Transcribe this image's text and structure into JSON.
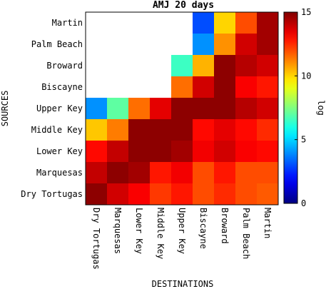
{
  "chart_data": {
    "type": "heatmap",
    "title": "AMJ 20 days",
    "xlabel": "DESTINATIONS",
    "ylabel": "SOURCES",
    "colorbar_label": "log",
    "colorbar_ticks": [
      "0",
      "5",
      "10",
      "15"
    ],
    "clim": [
      0,
      15
    ],
    "colormap": "jet",
    "missing_color": "#ffffff",
    "x_categories": [
      "Dry Tortugas",
      "Marquesas",
      "Lower Key",
      "Middle Key",
      "Upper Key",
      "Biscayne",
      "Broward",
      "Palm Beach",
      "Martin"
    ],
    "y_categories": [
      "Martin",
      "Palm Beach",
      "Broward",
      "Biscayne",
      "Upper Key",
      "Middle Key",
      "Lower Key",
      "Marquesas",
      "Dry Tortugas"
    ],
    "values": [
      [
        null,
        null,
        null,
        null,
        null,
        3.0,
        10.0,
        12.0,
        14.5
      ],
      [
        null,
        null,
        null,
        null,
        null,
        4.0,
        11.0,
        13.8,
        14.5
      ],
      [
        null,
        null,
        null,
        null,
        6.5,
        10.5,
        14.8,
        14.2,
        13.8
      ],
      [
        null,
        null,
        null,
        null,
        11.5,
        13.8,
        14.8,
        13.2,
        12.8
      ],
      [
        4.0,
        7.0,
        11.5,
        13.5,
        14.8,
        14.8,
        14.8,
        14.2,
        13.8
      ],
      [
        10.2,
        11.3,
        14.8,
        14.8,
        14.8,
        13.0,
        13.5,
        13.0,
        12.5
      ],
      [
        13.0,
        14.0,
        14.8,
        14.8,
        14.5,
        13.3,
        13.8,
        13.2,
        13.0
      ],
      [
        14.0,
        14.8,
        14.5,
        12.8,
        13.3,
        12.0,
        12.8,
        12.0,
        12.0
      ],
      [
        14.8,
        13.8,
        13.2,
        12.3,
        12.8,
        12.0,
        12.5,
        12.0,
        11.8
      ]
    ]
  }
}
